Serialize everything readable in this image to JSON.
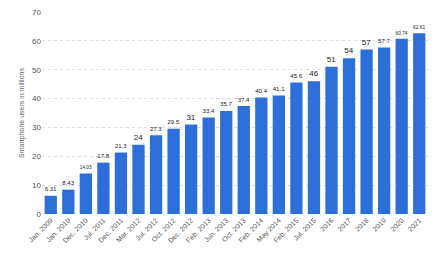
{
  "chart_data": {
    "type": "bar",
    "y_label": "Smartphone users in millions",
    "categories": [
      "Jan. 2009",
      "Jan. 2010",
      "Dec. 2010",
      "Jul. 2011",
      "Dec. 2011",
      "Mar. 2012",
      "Jul. 2012",
      "Oct. 2012",
      "Dec. 2012",
      "Feb. 2013",
      "Jun. 2013",
      "Oct. 2013",
      "Feb. 2014",
      "May 2014",
      "Feb. 2015",
      "Jul. 2015",
      "2016",
      "2017",
      "2018",
      "2019",
      "2020",
      "2021"
    ],
    "values": [
      6.31,
      8.43,
      14.03,
      17.8,
      21.3,
      24,
      27.3,
      29.5,
      31,
      33.4,
      35.7,
      37.4,
      40.4,
      41.1,
      45.6,
      46,
      51,
      54,
      57,
      57.7,
      60.74,
      62.61
    ],
    "color": "#2c6fd8",
    "ylim": [
      0,
      70
    ],
    "yticks": [
      0,
      10,
      20,
      30,
      40,
      50,
      60,
      70
    ],
    "grid": true,
    "data_labels": true
  }
}
